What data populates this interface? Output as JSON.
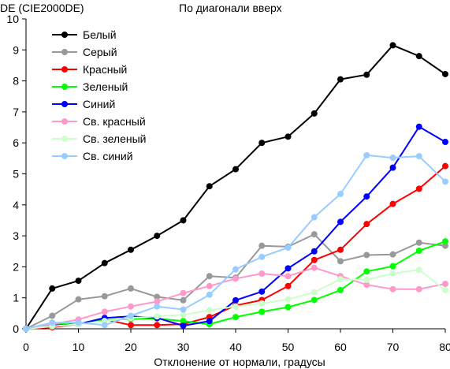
{
  "chart_data": {
    "type": "line",
    "title": "По диагонали вверх",
    "ylabel": "DE (CIE2000DE)",
    "xlabel": "Отклонение от нормали, градусы",
    "xlim": [
      0,
      80
    ],
    "ylim": [
      0,
      10
    ],
    "x_ticks": [
      0,
      10,
      20,
      30,
      40,
      50,
      60,
      70,
      80
    ],
    "y_ticks": [
      0,
      1,
      2,
      3,
      4,
      5,
      6,
      7,
      8,
      9,
      10
    ],
    "grid": false,
    "legend_position": "top-left",
    "x": [
      0,
      5,
      10,
      15,
      20,
      25,
      30,
      35,
      40,
      45,
      50,
      55,
      60,
      65,
      70,
      75,
      80
    ],
    "series": [
      {
        "name": "Белый",
        "color": "#000000",
        "values": [
          0,
          1.3,
          1.55,
          2.12,
          2.55,
          3.0,
          3.5,
          4.6,
          5.15,
          6.0,
          6.2,
          6.95,
          8.05,
          8.2,
          9.15,
          8.8,
          8.22
        ]
      },
      {
        "name": "Серый",
        "color": "#999999",
        "values": [
          0,
          0.42,
          0.95,
          1.05,
          1.3,
          1.03,
          0.92,
          1.7,
          1.65,
          2.68,
          2.65,
          3.05,
          2.18,
          2.38,
          2.4,
          2.78,
          2.68
        ]
      },
      {
        "name": "Красный",
        "color": "#ff0000",
        "values": [
          0,
          0.05,
          0.15,
          0.3,
          0.12,
          0.12,
          0.15,
          0.38,
          0.75,
          0.93,
          1.38,
          2.22,
          2.55,
          3.38,
          4.03,
          4.52,
          5.25
        ]
      },
      {
        "name": "Зеленый",
        "color": "#00ff00",
        "values": [
          0,
          0.15,
          0.15,
          0.28,
          0.32,
          0.33,
          0.25,
          0.15,
          0.38,
          0.55,
          0.7,
          0.93,
          1.25,
          1.85,
          2.02,
          2.52,
          2.82
        ]
      },
      {
        "name": "Синий",
        "color": "#0000ff",
        "values": [
          0,
          0.1,
          0.15,
          0.35,
          0.4,
          0.35,
          0.1,
          0.25,
          0.92,
          1.2,
          1.95,
          2.5,
          3.45,
          4.27,
          5.2,
          6.52,
          6.03
        ]
      },
      {
        "name": "Св. красный",
        "color": "#ff99cc",
        "values": [
          0,
          0.15,
          0.3,
          0.55,
          0.72,
          0.88,
          1.15,
          1.38,
          1.62,
          1.78,
          1.7,
          1.97,
          1.7,
          1.42,
          1.28,
          1.28,
          1.45
        ]
      },
      {
        "name": "Св. зеленый",
        "color": "#ccffcc",
        "values": [
          0,
          0.08,
          0.15,
          0.25,
          0.35,
          0.4,
          0.45,
          0.6,
          0.72,
          0.82,
          0.95,
          1.18,
          1.6,
          1.58,
          1.78,
          1.9,
          1.25
        ]
      },
      {
        "name": "Св. синий",
        "color": "#99ccff",
        "values": [
          0,
          0.2,
          0.2,
          0.12,
          0.42,
          0.72,
          0.62,
          1.1,
          1.92,
          2.32,
          2.62,
          3.6,
          4.35,
          5.6,
          5.52,
          5.57,
          4.75
        ]
      }
    ]
  }
}
